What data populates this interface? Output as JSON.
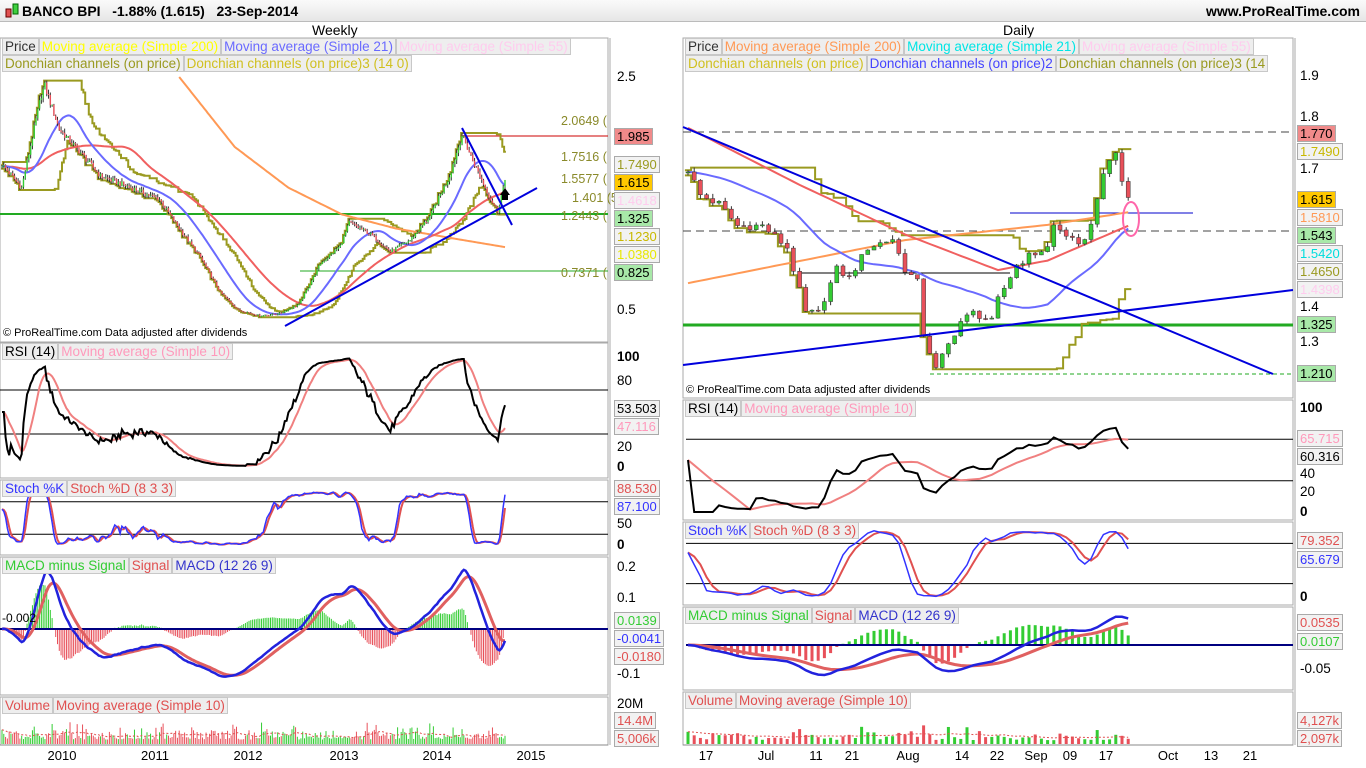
{
  "header": {
    "title": "BANCO BPI   -1.88% (1.615)   23-Sep-2014",
    "site": "www.ProRealTime.com"
  },
  "weekly": {
    "title": "Weekly",
    "legend1": [
      "Price",
      "Moving average (Simple 200)",
      "Moving average (Simple 21)",
      "Moving average (Simple 55)"
    ],
    "legend2": [
      "Donchian channels (on price)",
      "Donchian channels (on price)3 (14 0)"
    ],
    "copyright": "© ProRealTime.com Data adjusted after dividends",
    "price_ticks": [
      "2.5",
      "0.5"
    ],
    "fib_labels": [
      "2.0649 (",
      "1.7516 (",
      "1.5577 (",
      "1.401 (5",
      "1.2443 (",
      "0.7371 ("
    ],
    "price_boxes": [
      "1.985",
      "1.7490",
      "1.615",
      "1.4618",
      "1.325",
      "1.1230",
      "1.0380",
      "0.825"
    ],
    "rsi_legend": [
      "RSI (14)",
      "Moving average (Simple 10)"
    ],
    "rsi_ticks": [
      "100",
      "80",
      "20",
      "0"
    ],
    "rsi_boxes": [
      "53.503",
      "47.116"
    ],
    "stoch_legend": [
      "Stoch %K",
      "Stoch %D (8 3 3)"
    ],
    "stoch_ticks": [
      "50",
      "0"
    ],
    "stoch_boxes": [
      "88.530",
      "87.100"
    ],
    "macd_legend": [
      "MACD minus Signal",
      "Signal",
      "MACD (12 26 9)"
    ],
    "macd_ticks": [
      "0.2",
      "0.1",
      "-0.1"
    ],
    "macd_boxes": [
      "0.0139",
      "-0.0041",
      "-0.0180"
    ],
    "macd_note": "-0.002",
    "vol_legend": [
      "Volume",
      "Moving average (Simple 10)"
    ],
    "vol_ticks": [
      "20M"
    ],
    "vol_boxes": [
      "14.4M",
      "5,006k"
    ],
    "x_labels": [
      "2010",
      "2011",
      "2012",
      "2013",
      "2014",
      "2015"
    ]
  },
  "daily": {
    "title": "Daily",
    "legend1": [
      "Price",
      "Moving average (Simple 200)",
      "Moving average (Simple 21)",
      "Moving average (Simple 55)"
    ],
    "legend2": [
      "Donchian channels (on price)",
      "Donchian channels (on price)2",
      "Donchian channels (on price)3 (14"
    ],
    "copyright": "© ProRealTime.com Data adjusted after dividends",
    "price_ticks": [
      "1.9",
      "1.8",
      "1.7",
      "1.4",
      "1.3"
    ],
    "price_boxes": [
      "1.770",
      "1.7490",
      "1.615",
      "1.5810",
      "1.543",
      "1.5420",
      "1.4650",
      "1.4398",
      "1.325",
      "1.210"
    ],
    "rsi_legend": [
      "RSI (14)",
      "Moving average (Simple 10)"
    ],
    "rsi_ticks": [
      "100",
      "40",
      "20",
      "0"
    ],
    "rsi_boxes": [
      "65.715",
      "60.316"
    ],
    "stoch_legend": [
      "Stoch %K",
      "Stoch %D (8 3 3)"
    ],
    "stoch_ticks": [
      "0"
    ],
    "stoch_boxes": [
      "79.352",
      "65.679"
    ],
    "macd_legend": [
      "MACD minus Signal",
      "Signal",
      "MACD (12 26 9)"
    ],
    "macd_ticks": [
      "-0.05"
    ],
    "macd_boxes": [
      "0.0535",
      "0.0107"
    ],
    "vol_legend": [
      "Volume",
      "Moving average (Simple 10)"
    ],
    "vol_boxes": [
      "4,127k",
      "2,097k"
    ],
    "x_labels": [
      "17",
      "Jul",
      "11",
      "21",
      "Aug",
      "14",
      "22",
      "Sep",
      "09",
      "17",
      "Oct",
      "13",
      "21"
    ]
  },
  "colors": {
    "up": "#33cc33",
    "down": "#e8505a",
    "sma21": "#6a6aff",
    "sma55": "#f06060",
    "sma200": "#ff9955",
    "donchian": "#9a9a20",
    "trend": "#0000dd",
    "hline": "#22aa22",
    "resist": "#cc0000"
  },
  "chart_data": [
    {
      "type": "candlestick",
      "title": "Weekly",
      "bars": 282,
      "ylim": [
        0.3,
        2.6
      ],
      "close_keypoints": [
        [
          0,
          1.75
        ],
        [
          11,
          1.55
        ],
        [
          22,
          2.35
        ],
        [
          24,
          2.42
        ],
        [
          32,
          2.05
        ],
        [
          44,
          1.85
        ],
        [
          55,
          1.65
        ],
        [
          72,
          1.55
        ],
        [
          88,
          1.45
        ],
        [
          99,
          1.2
        ],
        [
          111,
          0.95
        ],
        [
          122,
          0.65
        ],
        [
          132,
          0.5
        ],
        [
          144,
          0.45
        ],
        [
          155,
          0.47
        ],
        [
          166,
          0.55
        ],
        [
          178,
          0.9
        ],
        [
          189,
          1.05
        ],
        [
          194,
          1.25
        ],
        [
          206,
          1.15
        ],
        [
          217,
          1.0
        ],
        [
          228,
          1.1
        ],
        [
          239,
          1.3
        ],
        [
          250,
          1.65
        ],
        [
          257,
          2.0
        ],
        [
          264,
          1.75
        ],
        [
          273,
          1.45
        ],
        [
          277,
          1.35
        ],
        [
          281,
          1.615
        ]
      ],
      "sma200_keypoints": [
        [
          99,
          2.5
        ],
        [
          130,
          1.9
        ],
        [
          160,
          1.55
        ],
        [
          190,
          1.32
        ],
        [
          220,
          1.2
        ],
        [
          250,
          1.12
        ],
        [
          281,
          1.04
        ]
      ]
    },
    {
      "type": "candlestick",
      "title": "Daily",
      "bars": 72,
      "ylim": [
        1.18,
        1.92
      ],
      "close_keypoints": [
        [
          0,
          1.68
        ],
        [
          2,
          1.62
        ],
        [
          5,
          1.6
        ],
        [
          8,
          1.55
        ],
        [
          12,
          1.55
        ],
        [
          16,
          1.5
        ],
        [
          19,
          1.35
        ],
        [
          21,
          1.35
        ],
        [
          24,
          1.45
        ],
        [
          26,
          1.43
        ],
        [
          29,
          1.5
        ],
        [
          33,
          1.52
        ],
        [
          35,
          1.45
        ],
        [
          37,
          1.42
        ],
        [
          38,
          1.3
        ],
        [
          40,
          1.22
        ],
        [
          41,
          1.25
        ],
        [
          44,
          1.33
        ],
        [
          46,
          1.35
        ],
        [
          49,
          1.33
        ],
        [
          50,
          1.38
        ],
        [
          53,
          1.46
        ],
        [
          55,
          1.48
        ],
        [
          58,
          1.5
        ],
        [
          59,
          1.55
        ],
        [
          61,
          1.53
        ],
        [
          63,
          1.5
        ],
        [
          65,
          1.55
        ],
        [
          66,
          1.62
        ],
        [
          68,
          1.7
        ],
        [
          69,
          1.72
        ],
        [
          70,
          1.65
        ],
        [
          71,
          1.615
        ]
      ],
      "sma200_keypoints": [
        [
          0,
          1.418
        ],
        [
          35,
          1.517
        ],
        [
          58,
          1.552
        ],
        [
          71,
          1.581
        ]
      ],
      "sma55_keypoints": [
        [
          0,
          1.775
        ],
        [
          18,
          1.644
        ],
        [
          35,
          1.53
        ],
        [
          50,
          1.448
        ],
        [
          58,
          1.47
        ],
        [
          71,
          1.55
        ]
      ]
    }
  ]
}
